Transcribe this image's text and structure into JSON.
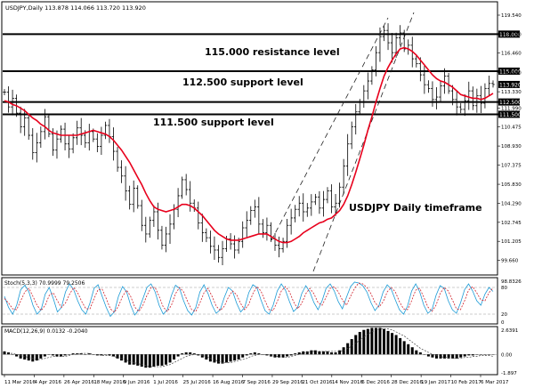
{
  "chart_data": {
    "type": "line",
    "title": "USDJPY,Daily  113.878 114.066 113.720 113.920",
    "annotation_timeframe": "USDJPY Daily timeframe",
    "ylim": [
      98.55,
      120.55
    ],
    "price_ticks": [
      "119.540",
      "118.000",
      "116.460",
      "114.880",
      "113.330",
      "111.990",
      "110.475",
      "108.930",
      "107.375",
      "105.830",
      "104.290",
      "102.745",
      "101.205",
      "99.660"
    ],
    "x_ticks": [
      "11 Mar 2016",
      "4 Apr 2016",
      "26 Apr 2016",
      "18 May 2016",
      "9 Jun 2016",
      "1 Jul 2016",
      "25 Jul 2016",
      "16 Aug 2016",
      "7 Sep 2016",
      "29 Sep 2016",
      "21 Oct 2016",
      "14 Nov 2016",
      "6 Dec 2016",
      "28 Dec 2016",
      "19 Jan 2017",
      "10 Feb 2017",
      "6 Mar 2017"
    ],
    "levels": [
      {
        "value": 118.0,
        "label": "118.000"
      },
      {
        "value": 115.0,
        "label": "115.000",
        "text": "115.000 resistance level"
      },
      {
        "value": 112.5,
        "label": "112.500",
        "text": "112.500 support level"
      },
      {
        "value": 111.5,
        "label": "111.500",
        "text": "111.500 support level"
      }
    ],
    "current_price": "113.920",
    "close": [
      113.3,
      112.1,
      112.8,
      111.6,
      110.5,
      111.2,
      109.8,
      108.4,
      109.2,
      110.1,
      111.3,
      109.9,
      108.6,
      109.5,
      110.3,
      109.1,
      108.7,
      109.6,
      110.4,
      109.8,
      109.2,
      110.1,
      109.5,
      108.9,
      109.8,
      110.6,
      109.7,
      108.5,
      107.2,
      106.5,
      105.3,
      104.2,
      105.5,
      104.1,
      102.5,
      101.8,
      102.9,
      103.6,
      102.1,
      100.9,
      101.8,
      102.6,
      103.8,
      104.9,
      106.2,
      105.4,
      104.3,
      103.9,
      102.7,
      101.9,
      101.5,
      100.8,
      100.5,
      99.9,
      100.6,
      101.4,
      101.0,
      100.5,
      101.2,
      102.3,
      102.9,
      103.7,
      104.0,
      102.6,
      101.9,
      102.5,
      101.4,
      100.9,
      100.6,
      101.2,
      102.5,
      103.1,
      103.8,
      104.3,
      103.6,
      103.9,
      104.4,
      104.8,
      103.9,
      104.6,
      105.3,
      104.0,
      104.3,
      105.6,
      107.3,
      109.1,
      110.5,
      111.7,
      112.5,
      113.4,
      114.2,
      115.1,
      116.5,
      117.8,
      118.3,
      117.3,
      116.5,
      117.7,
      118.1,
      116.8,
      117.1,
      116.0,
      115.6,
      114.7,
      113.9,
      113.6,
      112.7,
      112.9,
      113.8,
      114.6,
      113.4,
      112.7,
      112.1,
      111.9,
      112.6,
      113.4,
      112.2,
      113.0,
      112.4,
      113.6,
      114.0,
      113.92
    ],
    "ma": [
      112.6,
      112.5,
      112.3,
      112.2,
      112.0,
      111.8,
      111.5,
      111.2,
      111.0,
      110.7,
      110.5,
      110.2,
      110.0,
      109.9,
      109.8,
      109.8,
      109.8,
      109.8,
      109.8,
      109.9,
      110.0,
      110.1,
      110.2,
      110.1,
      110.0,
      109.9,
      109.7,
      109.4,
      109.0,
      108.6,
      108.1,
      107.6,
      107.0,
      106.4,
      105.8,
      105.1,
      104.5,
      104.0,
      103.8,
      103.7,
      103.6,
      103.7,
      103.8,
      104.0,
      104.2,
      104.2,
      104.1,
      103.9,
      103.6,
      103.3,
      102.9,
      102.5,
      102.1,
      101.8,
      101.6,
      101.4,
      101.3,
      101.3,
      101.3,
      101.4,
      101.5,
      101.6,
      101.7,
      101.8,
      101.8,
      101.8,
      101.6,
      101.4,
      101.2,
      101.1,
      101.1,
      101.2,
      101.4,
      101.6,
      101.9,
      102.1,
      102.3,
      102.5,
      102.7,
      102.8,
      103.0,
      103.1,
      103.4,
      103.7,
      104.2,
      104.9,
      105.8,
      106.8,
      107.9,
      109.0,
      110.2,
      111.3,
      112.5,
      113.6,
      114.6,
      115.3,
      115.9,
      116.4,
      116.8,
      116.9,
      116.8,
      116.6,
      116.3,
      115.9,
      115.5,
      115.1,
      114.7,
      114.4,
      114.2,
      114.1,
      113.9,
      113.7,
      113.4,
      113.1,
      113.0,
      112.9,
      112.8,
      112.8,
      112.7,
      112.8,
      113.0,
      113.2
    ],
    "stochastic": {
      "title": "Stoch(5,3,3) 70.9999 79.2506",
      "ylim": [
        0,
        100
      ],
      "ticks": [
        "98.8326",
        "80",
        "20",
        "0"
      ],
      "main": [
        60,
        35,
        20,
        40,
        75,
        85,
        70,
        40,
        20,
        30,
        65,
        80,
        55,
        25,
        35,
        70,
        88,
        75,
        50,
        30,
        20,
        45,
        78,
        86,
        60,
        35,
        15,
        25,
        60,
        82,
        70,
        40,
        18,
        30,
        55,
        80,
        88,
        70,
        40,
        20,
        30,
        62,
        85,
        78,
        50,
        28,
        18,
        35,
        70,
        86,
        66,
        40,
        22,
        30,
        58,
        80,
        72,
        45,
        25,
        35,
        68,
        86,
        80,
        52,
        28,
        20,
        40,
        72,
        88,
        74,
        48,
        26,
        35,
        66,
        84,
        70,
        46,
        30,
        50,
        78,
        88,
        72,
        48,
        32,
        58,
        82,
        92,
        90,
        84,
        70,
        46,
        28,
        40,
        70,
        86,
        76,
        52,
        30,
        20,
        38,
        72,
        88,
        70,
        40,
        22,
        30,
        62,
        84,
        78,
        50,
        30,
        22,
        45,
        75,
        88,
        72,
        50,
        40,
        65,
        80,
        71
      ],
      "signal": [
        55,
        45,
        32,
        30,
        50,
        70,
        78,
        60,
        40,
        28,
        40,
        62,
        68,
        50,
        35,
        45,
        65,
        80,
        68,
        48,
        32,
        32,
        55,
        75,
        76,
        55,
        32,
        24,
        38,
        60,
        74,
        60,
        36,
        26,
        40,
        62,
        80,
        80,
        60,
        36,
        26,
        40,
        66,
        80,
        70,
        48,
        30,
        26,
        45,
        68,
        78,
        60,
        38,
        28,
        38,
        58,
        72,
        64,
        44,
        30,
        42,
        66,
        82,
        72,
        50,
        30,
        28,
        48,
        72,
        82,
        70,
        48,
        32,
        44,
        66,
        78,
        66,
        46,
        40,
        58,
        78,
        82,
        70,
        52,
        40,
        60,
        78,
        90,
        88,
        80,
        66,
        46,
        36,
        48,
        70,
        80,
        70,
        48,
        32,
        30,
        50,
        74,
        78,
        58,
        36,
        26,
        40,
        66,
        80,
        72,
        52,
        32,
        30,
        50,
        74,
        82,
        68,
        52,
        50,
        68,
        79
      ]
    },
    "macd": {
      "title": "MACD(12,26,9) 0.0132 -0.2040",
      "ylim": [
        -1.897,
        2.6391
      ],
      "ticks": [
        "2.6391",
        "0.00",
        "-1.897"
      ],
      "histogram": [
        0.3,
        0.2,
        0.0,
        -0.2,
        -0.4,
        -0.5,
        -0.6,
        -0.7,
        -0.6,
        -0.4,
        -0.2,
        0.0,
        -0.1,
        -0.2,
        -0.2,
        -0.1,
        0.0,
        0.1,
        0.1,
        0.1,
        0.0,
        0.1,
        0.0,
        -0.1,
        -0.1,
        0.0,
        -0.1,
        -0.2,
        -0.4,
        -0.6,
        -0.8,
        -1.0,
        -1.0,
        -1.1,
        -1.2,
        -1.3,
        -1.3,
        -1.2,
        -1.1,
        -1.1,
        -1.0,
        -0.8,
        -0.5,
        -0.2,
        0.1,
        0.2,
        0.2,
        0.1,
        -0.1,
        -0.3,
        -0.5,
        -0.7,
        -0.8,
        -0.9,
        -0.9,
        -0.8,
        -0.7,
        -0.6,
        -0.5,
        -0.3,
        -0.1,
        0.1,
        0.2,
        0.1,
        0.0,
        -0.1,
        -0.2,
        -0.3,
        -0.3,
        -0.3,
        -0.2,
        -0.1,
        0.1,
        0.2,
        0.3,
        0.3,
        0.4,
        0.4,
        0.3,
        0.3,
        0.3,
        0.2,
        0.2,
        0.4,
        0.7,
        1.1,
        1.5,
        1.9,
        2.2,
        2.4,
        2.5,
        2.6,
        2.6,
        2.6,
        2.5,
        2.3,
        2.1,
        1.9,
        1.6,
        1.3,
        1.0,
        0.7,
        0.4,
        0.2,
        0.0,
        -0.2,
        -0.3,
        -0.4,
        -0.4,
        -0.4,
        -0.4,
        -0.4,
        -0.4,
        -0.3,
        -0.2,
        -0.1,
        -0.1,
        0.0,
        0.0,
        0.0,
        0.0,
        0.01
      ],
      "signal": [
        0.1,
        0.1,
        0.1,
        0.0,
        -0.1,
        -0.2,
        -0.3,
        -0.4,
        -0.5,
        -0.5,
        -0.4,
        -0.3,
        -0.2,
        -0.2,
        -0.2,
        -0.2,
        -0.1,
        0.0,
        0.0,
        0.1,
        0.1,
        0.1,
        0.0,
        0.0,
        -0.1,
        -0.1,
        -0.1,
        -0.2,
        -0.3,
        -0.4,
        -0.5,
        -0.7,
        -0.8,
        -0.9,
        -1.0,
        -1.1,
        -1.2,
        -1.2,
        -1.2,
        -1.2,
        -1.1,
        -1.0,
        -0.8,
        -0.6,
        -0.4,
        -0.2,
        -0.1,
        0.0,
        0.0,
        -0.1,
        -0.2,
        -0.4,
        -0.5,
        -0.7,
        -0.8,
        -0.8,
        -0.8,
        -0.7,
        -0.6,
        -0.5,
        -0.4,
        -0.2,
        -0.1,
        0.0,
        0.0,
        0.0,
        -0.1,
        -0.2,
        -0.2,
        -0.3,
        -0.3,
        -0.2,
        -0.1,
        0.0,
        0.1,
        0.2,
        0.3,
        0.3,
        0.3,
        0.3,
        0.3,
        0.3,
        0.3,
        0.3,
        0.4,
        0.6,
        0.8,
        1.1,
        1.4,
        1.7,
        2.0,
        2.2,
        2.4,
        2.5,
        2.5,
        2.5,
        2.4,
        2.2,
        2.0,
        1.8,
        1.5,
        1.2,
        0.9,
        0.6,
        0.4,
        0.2,
        0.0,
        -0.1,
        -0.2,
        -0.3,
        -0.3,
        -0.4,
        -0.4,
        -0.4,
        -0.3,
        -0.3,
        -0.2,
        -0.2,
        -0.1,
        -0.1,
        -0.1,
        -0.2
      ]
    }
  }
}
